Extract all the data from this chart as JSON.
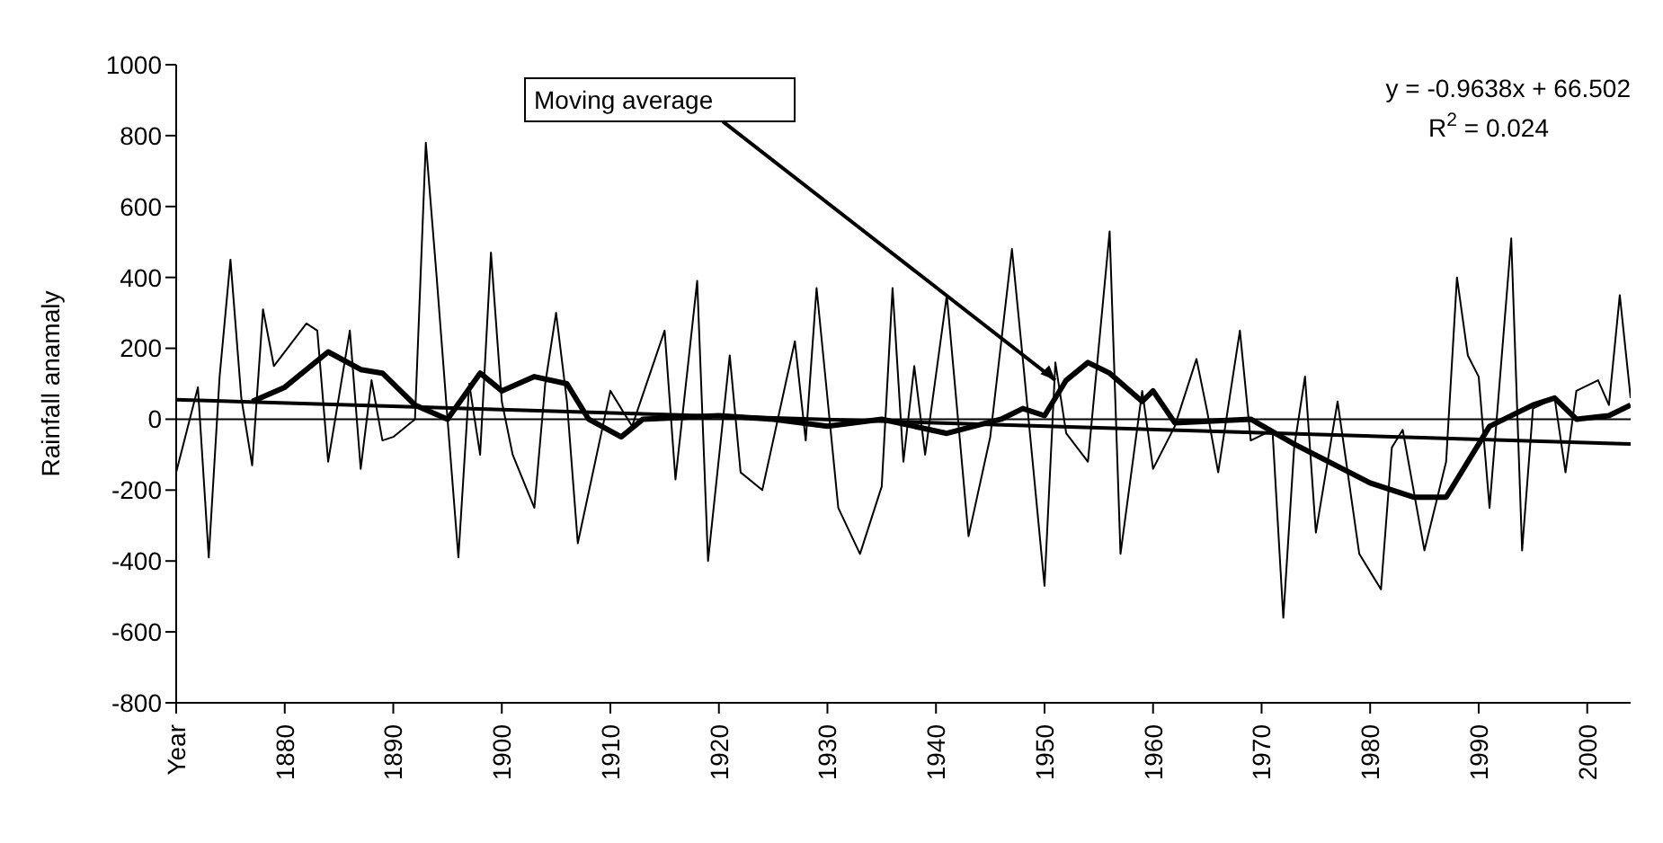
{
  "chart_data": {
    "type": "line",
    "ylabel": "Rainfall anamaly",
    "xlim": [
      1870,
      2004
    ],
    "xticks": [
      {
        "value": 1870,
        "label": "Year"
      },
      1880,
      1890,
      1900,
      1910,
      1920,
      1930,
      1940,
      1950,
      1960,
      1970,
      1980,
      1990,
      2000
    ],
    "ylim": [
      -800,
      1000
    ],
    "yticks": [
      -800,
      -600,
      -400,
      -200,
      0,
      200,
      400,
      600,
      800,
      1000
    ],
    "grid": false,
    "legend": false,
    "marker": "none",
    "line_style": "solid",
    "ref_lines": [
      {
        "axis": "y",
        "value": 0,
        "color": "#000000"
      }
    ],
    "annotations": [
      {
        "text": "Moving average",
        "x": 1951,
        "y": 110
      },
      "y = -0.9638x + 66.502",
      "R$^{2}$ = 0.024"
    ],
    "series": [
      {
        "color": "#000000",
        "x": [
          1870,
          1872,
          1873,
          1874,
          1875,
          1876,
          1877,
          1878,
          1879,
          1882,
          1883,
          1884,
          1886,
          1887,
          1888,
          1889,
          1890,
          1892,
          1893,
          1894,
          1895,
          1896,
          1897,
          1898,
          1899,
          1900,
          1901,
          1903,
          1904,
          1905,
          1906,
          1907,
          1910,
          1912,
          1915,
          1916,
          1918,
          1919,
          1921,
          1922,
          1924,
          1927,
          1928,
          1929,
          1931,
          1933,
          1935,
          1936,
          1937,
          1938,
          1939,
          1941,
          1943,
          1945,
          1947,
          1948,
          1950,
          1951,
          1952,
          1954,
          1956,
          1957,
          1959,
          1960,
          1962,
          1964,
          1965,
          1966,
          1968,
          1969,
          1971,
          1972,
          1973,
          1974,
          1975,
          1977,
          1979,
          1981,
          1982,
          1983,
          1985,
          1987,
          1988,
          1989,
          1990,
          1991,
          1993,
          1994,
          1995,
          1997,
          1998,
          1999,
          2001,
          2002,
          2003,
          2004
        ],
        "values": [
          -150,
          90,
          -390,
          120,
          450,
          60,
          -130,
          310,
          150,
          270,
          250,
          -120,
          250,
          -140,
          110,
          -60,
          -50,
          0,
          780,
          400,
          0,
          -390,
          100,
          -100,
          470,
          50,
          -100,
          -250,
          100,
          300,
          50,
          -350,
          80,
          -20,
          250,
          -170,
          390,
          -400,
          180,
          -150,
          -200,
          220,
          -60,
          370,
          -250,
          -380,
          -190,
          370,
          -120,
          150,
          -100,
          350,
          -330,
          -50,
          480,
          170,
          -470,
          160,
          -40,
          -120,
          530,
          -380,
          80,
          -140,
          -20,
          170,
          20,
          -150,
          250,
          -60,
          -30,
          -560,
          -80,
          120,
          -320,
          50,
          -380,
          -480,
          -80,
          -30,
          -370,
          -120,
          400,
          180,
          120,
          -250,
          510,
          -370,
          30,
          60,
          -150,
          80,
          110,
          40,
          350,
          60
        ]
      },
      {
        "color": "#000000",
        "x": [
          1877,
          1880,
          1884,
          1887,
          1889,
          1892,
          1895,
          1898,
          1900,
          1903,
          1906,
          1908,
          1911,
          1913,
          1920,
          1925,
          1930,
          1935,
          1941,
          1946,
          1948,
          1950,
          1952,
          1954,
          1956,
          1959,
          1960,
          1962,
          1969,
          1973,
          1980,
          1984,
          1987,
          1991,
          1995,
          1997,
          1999,
          2002,
          2004
        ],
        "values": [
          50,
          90,
          190,
          140,
          130,
          40,
          0,
          130,
          80,
          120,
          100,
          0,
          -50,
          0,
          10,
          0,
          -20,
          0,
          -40,
          0,
          30,
          10,
          110,
          160,
          130,
          50,
          80,
          -10,
          0,
          -70,
          -180,
          -220,
          -220,
          -20,
          40,
          60,
          0,
          10,
          40
        ]
      },
      {
        "type": "line",
        "color": "#000000",
        "x": [
          1870,
          2004
        ],
        "values": [
          55,
          -70
        ]
      }
    ]
  }
}
